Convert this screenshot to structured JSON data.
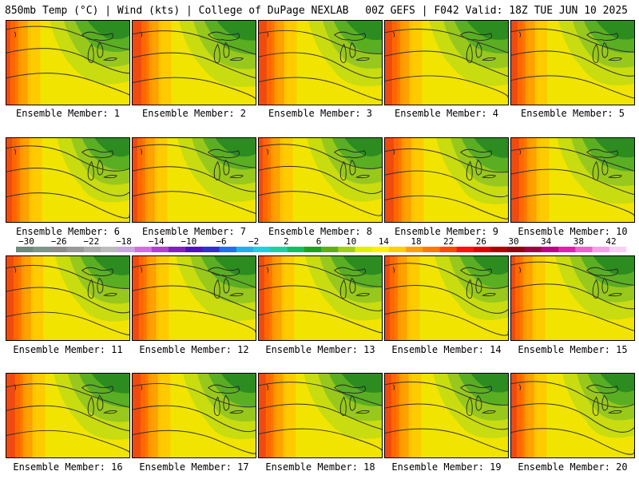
{
  "header": {
    "left": "850mb Temp (°C) | Wind (kts) | College of DuPage NEXLAB",
    "right": "00Z GEFS | F042 Valid: 18Z TUE JUN 10 2025"
  },
  "members": [
    "Ensemble Member: 1",
    "Ensemble Member: 2",
    "Ensemble Member: 3",
    "Ensemble Member: 4",
    "Ensemble Member: 5",
    "Ensemble Member: 6",
    "Ensemble Member: 7",
    "Ensemble Member: 8",
    "Ensemble Member: 9",
    "Ensemble Member: 10",
    "Ensemble Member: 11",
    "Ensemble Member: 12",
    "Ensemble Member: 13",
    "Ensemble Member: 14",
    "Ensemble Member: 15",
    "Ensemble Member: 16",
    "Ensemble Member: 17",
    "Ensemble Member: 18",
    "Ensemble Member: 19",
    "Ensemble Member: 20"
  ],
  "colorbar": {
    "tick_labels": [
      "−30",
      "−26",
      "−22",
      "−18",
      "−14",
      "−10",
      "−6",
      "−2",
      "2",
      "6",
      "10",
      "14",
      "18",
      "22",
      "26",
      "30",
      "34",
      "38",
      "42"
    ],
    "colors": [
      "#6e8a7a",
      "#7e9688",
      "#8c8c8c",
      "#9a9a9a",
      "#acacac",
      "#bcbcbc",
      "#c8a8e0",
      "#d070e0",
      "#b040d0",
      "#8020c0",
      "#5010c0",
      "#3030d0",
      "#2070f0",
      "#20b0f0",
      "#20d0e0",
      "#20d0a0",
      "#10c060",
      "#20a020",
      "#60b010",
      "#a0d010",
      "#e0f000",
      "#fff000",
      "#ffd000",
      "#ffa000",
      "#ff7800",
      "#ff4800",
      "#ff1010",
      "#e00000",
      "#b00000",
      "#900010",
      "#a00040",
      "#c00080",
      "#e020b0",
      "#f060d0",
      "#f8a0e8",
      "#fcd0f4"
    ]
  },
  "map_colors": {
    "dark_green": "#2c8c20",
    "green": "#5aae22",
    "lime": "#98c81c",
    "yellow_green": "#c8dc10",
    "yellow": "#f0e400",
    "gold": "#ffc800",
    "orange": "#ff9a00",
    "dark_orange": "#ff6a00",
    "red": "#f03a10",
    "contour": "#303030"
  }
}
